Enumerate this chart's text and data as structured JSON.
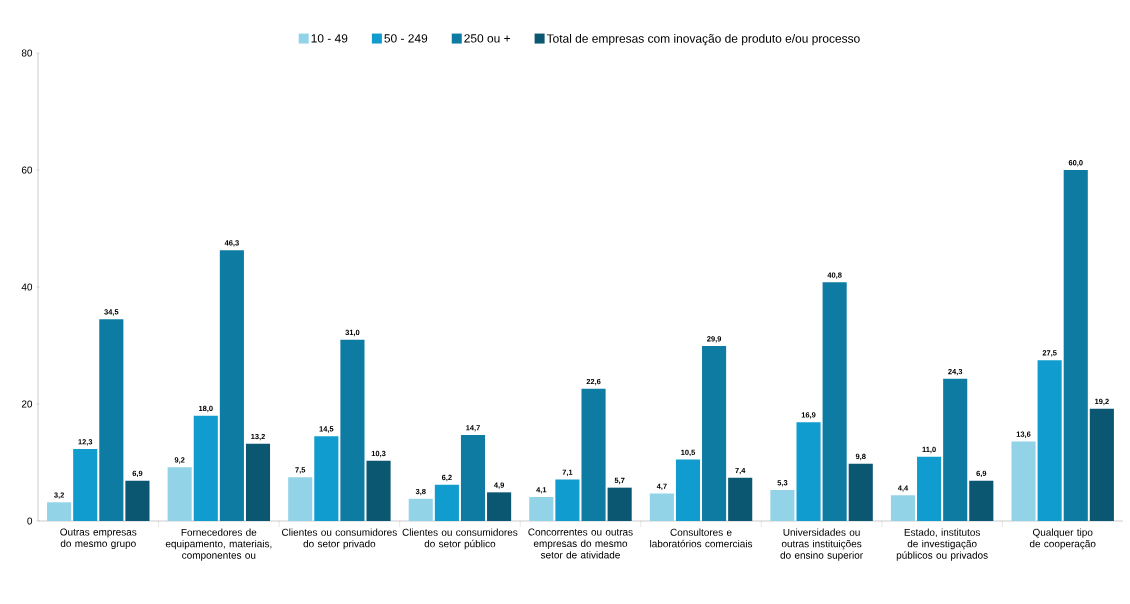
{
  "chart_data": {
    "type": "bar",
    "categories": [
      "Outras empresas do mesmo grupo",
      "Fornecedores de equipamento, materiais, componentes ou",
      "Clientes ou consumidores do setor privado",
      "Clientes ou consumidores do setor público",
      "Concorrentes ou outras empresas do mesmo setor de atividade",
      "Consultores e laboratórios comerciais",
      "Universidades ou outras instituições do ensino superior",
      "Estado, institutos de investigação públicos ou privados",
      "Qualquer tipo de cooperação"
    ],
    "series": [
      {
        "name": "10 - 49",
        "color": "#92d3e8",
        "values": [
          3.2,
          9.2,
          7.5,
          3.8,
          4.1,
          4.7,
          5.3,
          4.4,
          13.6
        ],
        "value_labels": [
          "3,2",
          "9,2",
          "7,5",
          "3,8",
          "4,1",
          "4,7",
          "5,3",
          "4,4",
          "13,6"
        ]
      },
      {
        "name": "50 - 249",
        "color": "#119ccf",
        "values": [
          12.3,
          18.0,
          14.5,
          6.2,
          7.1,
          10.5,
          16.9,
          11.0,
          27.5
        ],
        "value_labels": [
          "12,3",
          "18,0",
          "14,5",
          "6,2",
          "7,1",
          "10,5",
          "16,9",
          "11,0",
          "27,5"
        ]
      },
      {
        "name": "250 ou +",
        "color": "#0e7ba3",
        "values": [
          34.5,
          46.3,
          31.0,
          14.7,
          22.6,
          29.9,
          40.8,
          24.3,
          60.0
        ],
        "value_labels": [
          "34,5",
          "46,3",
          "31,0",
          "14,7",
          "22,6",
          "29,9",
          "40,8",
          "24,3",
          "60,0"
        ]
      },
      {
        "name": "Total de empresas com inovação de produto e/ou processo",
        "color": "#0b5670",
        "values": [
          6.9,
          13.2,
          10.3,
          4.9,
          5.7,
          7.4,
          9.8,
          6.9,
          19.2
        ],
        "value_labels": [
          "6,9",
          "13,2",
          "10,3",
          "4,9",
          "5,7",
          "7,4",
          "9,8",
          "6,9",
          "19,2"
        ]
      }
    ],
    "ylim": [
      0,
      80
    ],
    "yticks": [
      0,
      20,
      40,
      60,
      80
    ],
    "legend": "top",
    "grid": false
  }
}
